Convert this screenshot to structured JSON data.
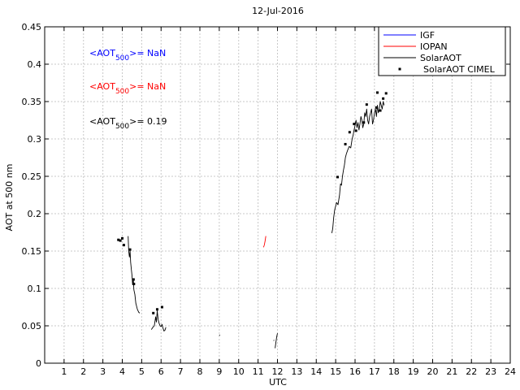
{
  "chart_data": {
    "type": "line",
    "title": "12-Jul-2016",
    "xlabel": "UTC",
    "ylabel": "AOT at 500 nm",
    "xlim": [
      0,
      24
    ],
    "ylim": [
      0,
      0.45
    ],
    "xticks": [
      1,
      2,
      3,
      4,
      5,
      6,
      7,
      8,
      9,
      10,
      11,
      12,
      13,
      14,
      15,
      16,
      17,
      18,
      19,
      20,
      21,
      22,
      23,
      24
    ],
    "yticks": [
      0,
      0.05,
      0.1,
      0.15,
      0.2,
      0.25,
      0.3,
      0.35,
      0.4,
      0.45
    ],
    "ytick_labels": [
      "0",
      "0.05",
      "0.1",
      "0.15",
      "0.2",
      "0.25",
      "0.3",
      "0.35",
      "0.4",
      "0.45"
    ],
    "grid": true,
    "legend_position": "top-right",
    "annotations": [
      {
        "prefix": "<AOT",
        "sub": "500",
        "suffix": ">=  NaN",
        "color": "#0000ff"
      },
      {
        "prefix": "<AOT",
        "sub": "500",
        "suffix": ">=  NaN",
        "color": "#ff0000"
      },
      {
        "prefix": "<AOT",
        "sub": "500",
        "suffix": ">= 0.19",
        "color": "#000000"
      }
    ],
    "series": [
      {
        "name": "IGF",
        "style": "line",
        "color": "#0000ff",
        "segments": []
      },
      {
        "name": "IOPAN",
        "style": "line",
        "color": "#ff0000",
        "segments": [
          [
            [
              11.28,
              0.155
            ],
            [
              11.32,
              0.158
            ],
            [
              11.36,
              0.163
            ],
            [
              11.4,
              0.17
            ]
          ]
        ]
      },
      {
        "name": "SolarAOT",
        "style": "line",
        "color": "#000000",
        "segments": [
          [
            [
              4.3,
              0.17
            ],
            [
              4.33,
              0.15
            ],
            [
              4.37,
              0.142
            ],
            [
              4.4,
              0.15
            ],
            [
              4.43,
              0.135
            ],
            [
              4.47,
              0.125
            ],
            [
              4.5,
              0.118
            ],
            [
              4.53,
              0.105
            ],
            [
              4.57,
              0.112
            ],
            [
              4.6,
              0.098
            ],
            [
              4.65,
              0.092
            ],
            [
              4.7,
              0.08
            ],
            [
              4.78,
              0.072
            ],
            [
              4.85,
              0.068
            ],
            [
              4.9,
              0.067
            ]
          ],
          [
            [
              5.5,
              0.045
            ],
            [
              5.58,
              0.048
            ],
            [
              5.65,
              0.05
            ],
            [
              5.72,
              0.062
            ],
            [
              5.76,
              0.055
            ],
            [
              5.8,
              0.07
            ],
            [
              5.85,
              0.058
            ],
            [
              5.9,
              0.053
            ],
            [
              5.95,
              0.05
            ],
            [
              6.0,
              0.049
            ],
            [
              6.05,
              0.052
            ],
            [
              6.1,
              0.047
            ],
            [
              6.15,
              0.043
            ],
            [
              6.2,
              0.044
            ],
            [
              6.25,
              0.048
            ]
          ],
          [
            [
              9.0,
              0.037
            ],
            [
              9.03,
              0.038
            ]
          ],
          [
            [
              11.8,
              0.03
            ],
            [
              11.83,
              0.031
            ]
          ],
          [
            [
              11.88,
              0.02
            ],
            [
              11.92,
              0.028
            ],
            [
              11.96,
              0.035
            ],
            [
              12.0,
              0.04
            ]
          ],
          [
            [
              14.8,
              0.174
            ],
            [
              14.85,
              0.18
            ],
            [
              14.9,
              0.195
            ],
            [
              14.95,
              0.205
            ],
            [
              15.0,
              0.21
            ],
            [
              15.05,
              0.215
            ],
            [
              15.12,
              0.212
            ],
            [
              15.2,
              0.225
            ],
            [
              15.25,
              0.24
            ],
            [
              15.3,
              0.238
            ],
            [
              15.35,
              0.25
            ],
            [
              15.4,
              0.258
            ],
            [
              15.45,
              0.265
            ],
            [
              15.5,
              0.275
            ],
            [
              15.55,
              0.28
            ],
            [
              15.62,
              0.285
            ],
            [
              15.7,
              0.29
            ],
            [
              15.78,
              0.288
            ],
            [
              15.85,
              0.3
            ],
            [
              15.9,
              0.305
            ],
            [
              15.95,
              0.312
            ],
            [
              16.0,
              0.318
            ],
            [
              16.05,
              0.325
            ],
            [
              16.1,
              0.315
            ],
            [
              16.15,
              0.322
            ],
            [
              16.2,
              0.312
            ],
            [
              16.25,
              0.32
            ],
            [
              16.3,
              0.33
            ],
            [
              16.35,
              0.325
            ],
            [
              16.4,
              0.315
            ],
            [
              16.45,
              0.32
            ],
            [
              16.5,
              0.335
            ],
            [
              16.55,
              0.33
            ],
            [
              16.6,
              0.34
            ],
            [
              16.65,
              0.325
            ],
            [
              16.7,
              0.32
            ],
            [
              16.75,
              0.33
            ],
            [
              16.8,
              0.335
            ],
            [
              16.85,
              0.34
            ],
            [
              16.9,
              0.32
            ],
            [
              16.95,
              0.325
            ],
            [
              17.0,
              0.335
            ],
            [
              17.05,
              0.34
            ],
            [
              17.1,
              0.33
            ],
            [
              17.15,
              0.345
            ],
            [
              17.2,
              0.335
            ],
            [
              17.25,
              0.34
            ],
            [
              17.3,
              0.35
            ],
            [
              17.35,
              0.345
            ],
            [
              17.4,
              0.34
            ],
            [
              17.45,
              0.35
            ],
            [
              17.5,
              0.345
            ]
          ]
        ]
      },
      {
        "name": "SolarAOT CIMEL",
        "style": "points",
        "color": "#000000",
        "points": [
          [
            3.8,
            0.165
          ],
          [
            3.9,
            0.164
          ],
          [
            4.0,
            0.167
          ],
          [
            4.08,
            0.158
          ],
          [
            4.4,
            0.152
          ],
          [
            4.58,
            0.112
          ],
          [
            4.6,
            0.106
          ],
          [
            5.6,
            0.067
          ],
          [
            5.8,
            0.072
          ],
          [
            6.05,
            0.075
          ],
          [
            15.1,
            0.249
          ],
          [
            15.5,
            0.293
          ],
          [
            15.72,
            0.309
          ],
          [
            15.95,
            0.32
          ],
          [
            16.05,
            0.311
          ],
          [
            16.45,
            0.322
          ],
          [
            16.6,
            0.346
          ],
          [
            17.1,
            0.342
          ],
          [
            17.15,
            0.362
          ],
          [
            17.3,
            0.338
          ],
          [
            17.45,
            0.354
          ],
          [
            17.6,
            0.361
          ]
        ]
      }
    ]
  }
}
